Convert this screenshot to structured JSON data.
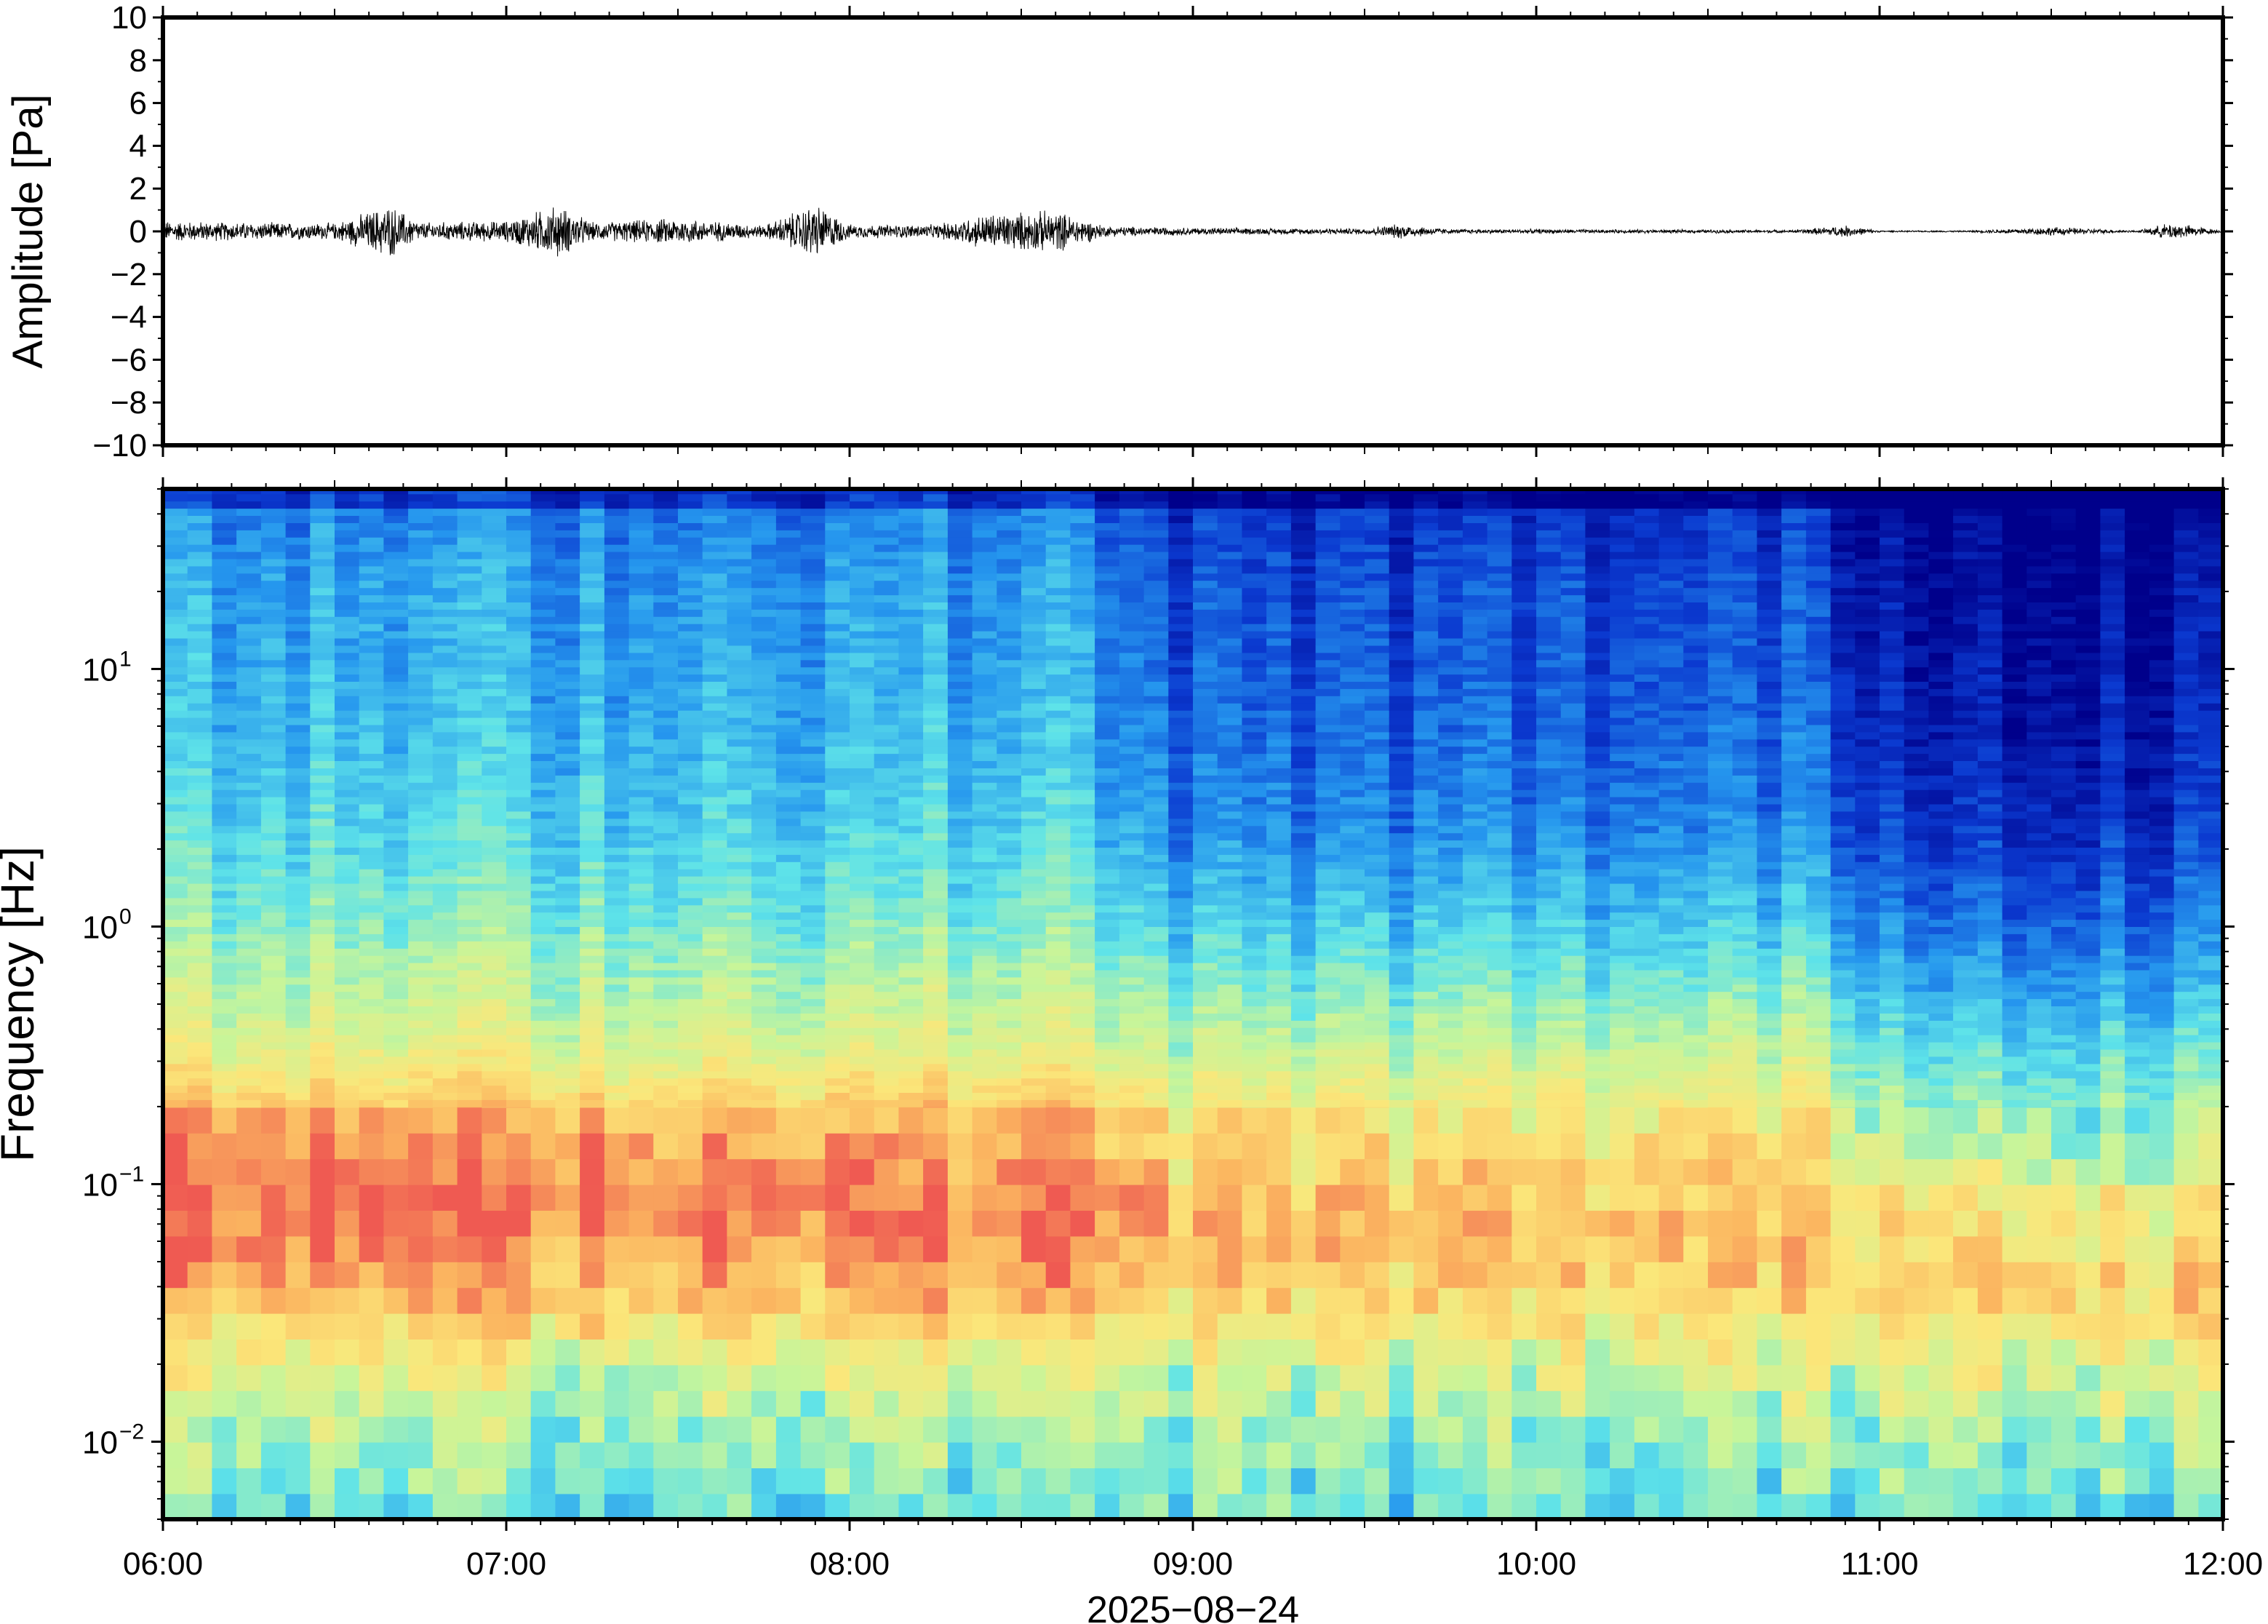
{
  "chart_data": [
    {
      "type": "line",
      "panel": "waveform",
      "title": "",
      "xlabel": "",
      "ylabel": "Amplitude [Pa]",
      "ylim": [
        -10,
        10
      ],
      "yticks": [
        -10,
        -8,
        -6,
        -4,
        -2,
        0,
        2,
        4,
        6,
        8,
        10
      ],
      "ytick_labels": [
        "−10",
        "−8",
        "−6",
        "−4",
        "−2",
        "0",
        "2",
        "4",
        "6",
        "8",
        "10"
      ],
      "xlim": [
        "06:00",
        "12:00"
      ],
      "grid": false,
      "series": [
        {
          "color": "#000000",
          "envelope_x_hours": [
            6.0,
            6.25,
            6.5,
            6.66,
            6.75,
            7.0,
            7.15,
            7.25,
            7.5,
            7.75,
            7.9,
            8.0,
            8.25,
            8.4,
            8.6,
            8.75,
            9.0,
            9.25,
            9.5,
            9.6,
            9.75,
            10.0,
            10.25,
            10.5,
            10.75,
            10.9,
            11.0,
            11.25,
            11.5,
            11.75,
            11.85,
            12.0
          ],
          "envelope_amplitude_pa": [
            0.7,
            0.6,
            0.55,
            1.8,
            0.6,
            0.7,
            1.8,
            0.6,
            0.9,
            0.4,
            1.9,
            0.45,
            0.45,
            1.2,
            1.4,
            0.35,
            0.25,
            0.2,
            0.2,
            0.5,
            0.15,
            0.15,
            0.12,
            0.12,
            0.1,
            0.4,
            0.05,
            0.05,
            0.3,
            0.05,
            0.6,
            0.05
          ]
        }
      ]
    },
    {
      "type": "heatmap",
      "panel": "spectrogram",
      "title": "",
      "xlabel": "2025−08−24",
      "ylabel": "Frequency [Hz]",
      "yscale": "log",
      "ylim_hz": [
        0.005,
        50
      ],
      "yticks": [
        0.01,
        0.1,
        1,
        10
      ],
      "ytick_labels": [
        {
          "base": "10",
          "exp": "−2"
        },
        {
          "base": "10",
          "exp": "−1"
        },
        {
          "base": "10",
          "exp": "0"
        },
        {
          "base": "10",
          "exp": "1"
        }
      ],
      "x_hours": [
        6,
        7,
        8,
        9,
        10,
        11,
        12
      ],
      "xtick_labels": [
        "06:00",
        "07:00",
        "08:00",
        "09:00",
        "10:00",
        "11:00",
        "12:00"
      ],
      "grid": false,
      "colormap": [
        "#00008b",
        "#0b3ad0",
        "#2596ee",
        "#5ee3e9",
        "#c7f59a",
        "#fbe77a",
        "#fbb660",
        "#ef5a52"
      ],
      "time_columns": 84,
      "freq_rows_log10": [
        -2.3,
        -2.0,
        -1.7,
        -1.4,
        -1.1,
        -0.8,
        -0.5,
        -0.2,
        0.1,
        0.4,
        0.7,
        1.0,
        1.3,
        1.7
      ],
      "level_profiles_0to1": {
        "06:00-08:45": [
          0.44,
          0.52,
          0.64,
          0.86,
          0.96,
          0.87,
          0.65,
          0.55,
          0.46,
          0.4,
          0.36,
          0.33,
          0.31,
          0.24
        ],
        "09:00-10:45": [
          0.43,
          0.5,
          0.6,
          0.78,
          0.82,
          0.72,
          0.58,
          0.45,
          0.34,
          0.25,
          0.21,
          0.18,
          0.16,
          0.1
        ],
        "11:00-12:00": [
          0.46,
          0.54,
          0.66,
          0.82,
          0.7,
          0.55,
          0.45,
          0.32,
          0.22,
          0.14,
          0.1,
          0.07,
          0.05,
          0.02
        ]
      }
    }
  ]
}
